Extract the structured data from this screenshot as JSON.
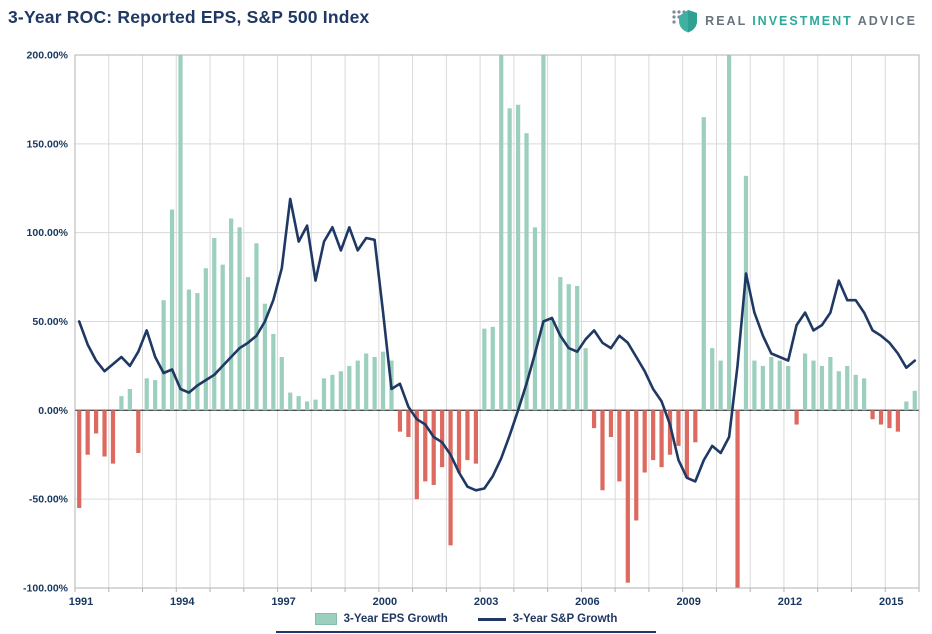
{
  "header": {
    "title": "3-Year ROC: Reported EPS, S&P 500 Index",
    "logo": {
      "word1": "REAL",
      "word2": "INVESTMENT",
      "word3": "ADVICE"
    }
  },
  "legend": [
    {
      "label": "3-Year EPS Growth"
    },
    {
      "label": "3-Year S&P Growth"
    }
  ],
  "chart_data": {
    "type": "combo_bar_line",
    "title": "3-Year ROC: Reported EPS, S&P 500 Index",
    "x_start": "1991 Q1",
    "x_end": "2015 Q4",
    "frequency": "quarterly",
    "grid": true,
    "legend_position": "bottom",
    "y_axis": {
      "min": -100,
      "max": 200,
      "step": 50,
      "format": "percent",
      "ticks": [
        {
          "v": 200,
          "label": "200.00%"
        },
        {
          "v": 150,
          "label": "150.00%"
        },
        {
          "v": 100,
          "label": "100.00%"
        },
        {
          "v": 50,
          "label": "50.00%"
        },
        {
          "v": 0,
          "label": "0.00%"
        },
        {
          "v": -50,
          "label": "-50.00%"
        },
        {
          "v": -100,
          "label": "-100.00%"
        }
      ]
    },
    "x_axis": {
      "start_year": 1991,
      "end_year": 2016,
      "gridline_every_years": 1,
      "label_every_years": 3,
      "ticks": [
        {
          "v": 1991,
          "label": "1991"
        },
        {
          "v": 1994,
          "label": "1994"
        },
        {
          "v": 1997,
          "label": "1997"
        },
        {
          "v": 2000,
          "label": "2000"
        },
        {
          "v": 2003,
          "label": "2003"
        },
        {
          "v": 2006,
          "label": "2006"
        },
        {
          "v": 2009,
          "label": "2009"
        },
        {
          "v": 2012,
          "label": "2012"
        },
        {
          "v": 2015,
          "label": "2015"
        }
      ]
    },
    "series": [
      {
        "name": "3-Year EPS Growth",
        "type": "bar",
        "unit": "%",
        "color_positive": "#9ccfbe",
        "color_negative": "#dc6a60",
        "values": [
          -55,
          -25,
          -13,
          -26,
          -30,
          8,
          12,
          -24,
          18,
          17,
          62,
          113,
          205,
          68,
          66,
          80,
          97,
          82,
          108,
          103,
          75,
          94,
          60,
          43,
          30,
          10,
          8,
          5,
          6,
          18,
          20,
          22,
          25,
          28,
          32,
          30,
          33,
          28,
          -12,
          -15,
          -50,
          -40,
          -42,
          -32,
          -76,
          -35,
          -28,
          -30,
          46,
          47,
          205,
          170,
          172,
          156,
          103,
          210,
          52,
          75,
          71,
          70,
          35,
          -10,
          -45,
          -15,
          -40,
          -97,
          -62,
          -35,
          -28,
          -32,
          -25,
          -20,
          -38,
          -18,
          165,
          35,
          28,
          210,
          -100,
          132,
          28,
          25,
          30,
          28,
          25,
          -8,
          32,
          28,
          25,
          30,
          22,
          25,
          20,
          18,
          -5,
          -8,
          -10,
          -12,
          5,
          11
        ]
      },
      {
        "name": "3-Year S&P Growth",
        "type": "line",
        "unit": "%",
        "color": "#1f3864",
        "values": [
          50,
          37,
          28,
          22,
          26,
          30,
          25,
          33,
          45,
          30,
          21,
          23,
          12,
          10,
          14,
          17,
          20,
          25,
          30,
          35,
          38,
          42,
          50,
          62,
          80,
          119,
          95,
          104,
          73,
          95,
          103,
          90,
          103,
          90,
          97,
          96,
          55,
          12,
          15,
          2,
          -5,
          -8,
          -15,
          -18,
          -25,
          -35,
          -43,
          -45,
          -44,
          -37,
          -27,
          -14,
          0,
          15,
          32,
          50,
          52,
          42,
          35,
          33,
          40,
          45,
          38,
          35,
          42,
          38,
          30,
          22,
          12,
          5,
          -8,
          -28,
          -38,
          -40,
          -28,
          -20,
          -24,
          -15,
          25,
          77,
          55,
          42,
          32,
          30,
          28,
          48,
          55,
          45,
          48,
          55,
          73,
          62,
          62,
          55,
          45,
          42,
          38,
          32,
          24,
          28
        ]
      }
    ],
    "colors": {
      "grid": "#d9d9d9",
      "border": "#b3b3b3",
      "zero_line": "#4d4d4d",
      "axis_text": "#17375e",
      "navy": "#1f3864",
      "teal": "#2fa99b"
    }
  }
}
